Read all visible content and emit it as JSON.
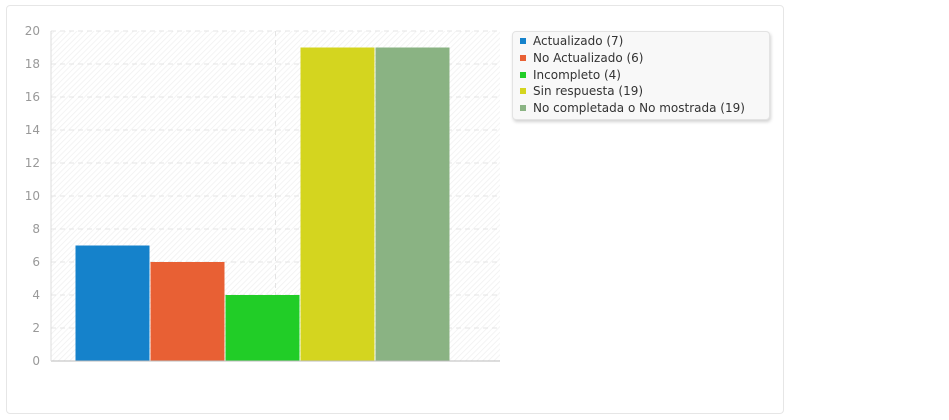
{
  "chart_data": {
    "type": "bar",
    "title": "",
    "xlabel": "",
    "ylabel": "",
    "ylim": [
      0,
      20
    ],
    "yticks": [
      0,
      2,
      4,
      6,
      8,
      10,
      12,
      14,
      16,
      18,
      20
    ],
    "grid": true,
    "legend_position": "right",
    "series": [
      {
        "name": "Actualizado (7)",
        "value": 7,
        "color": "#1582cb"
      },
      {
        "name": "No Actualizado (6)",
        "value": 6,
        "color": "#e86034"
      },
      {
        "name": "Incompleto (4)",
        "value": 4,
        "color": "#21cd27"
      },
      {
        "name": "Sin respuesta (19)",
        "value": 19,
        "color": "#d4d51f"
      },
      {
        "name": "No completada o No mostrada (19)",
        "value": 19,
        "color": "#8ab383"
      }
    ]
  }
}
